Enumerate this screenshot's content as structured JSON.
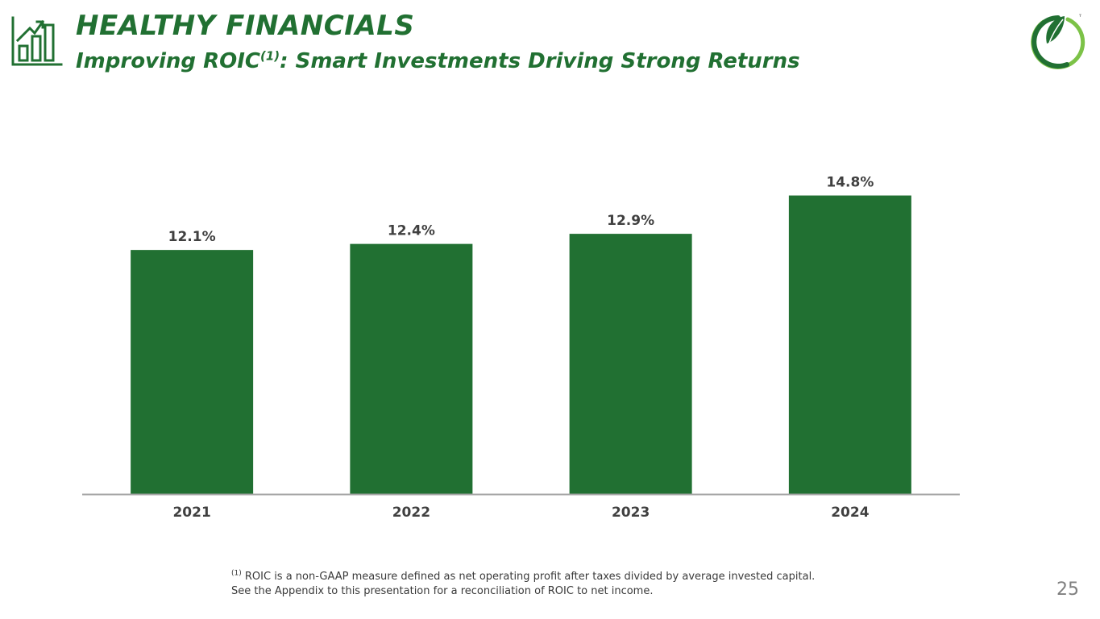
{
  "header": {
    "title": "HEALTHY FINANCIALS",
    "subtitle_prefix": "Improving ROIC",
    "subtitle_superscript": "(1)",
    "subtitle_suffix": ": Smart Investments Driving Strong Returns",
    "icon": "bar-chart-growth-icon",
    "logo": "leaf-logo-icon"
  },
  "chart_data": {
    "type": "bar",
    "title": "",
    "categories": [
      "2021",
      "2022",
      "2023",
      "2024"
    ],
    "values": [
      12.1,
      12.4,
      12.9,
      14.8
    ],
    "value_labels": [
      "12.1%",
      "12.4%",
      "12.9%",
      "14.8%"
    ],
    "xlabel": "",
    "ylabel": "",
    "ylim": [
      0,
      16.5
    ],
    "grid": false,
    "legend": "none"
  },
  "footnote": {
    "marker": "(1)",
    "line1": " ROIC is a non-GAAP measure defined as net operating profit after taxes divided by average invested capital.",
    "line2": "See the Appendix to this presentation for a reconciliation of ROIC to net income."
  },
  "page_number": "25",
  "colors": {
    "brand_green": "#217032",
    "bar": "#217032",
    "axis": "#a6a6a6",
    "label_text": "#404040",
    "logo_light_green": "#7cc247"
  }
}
